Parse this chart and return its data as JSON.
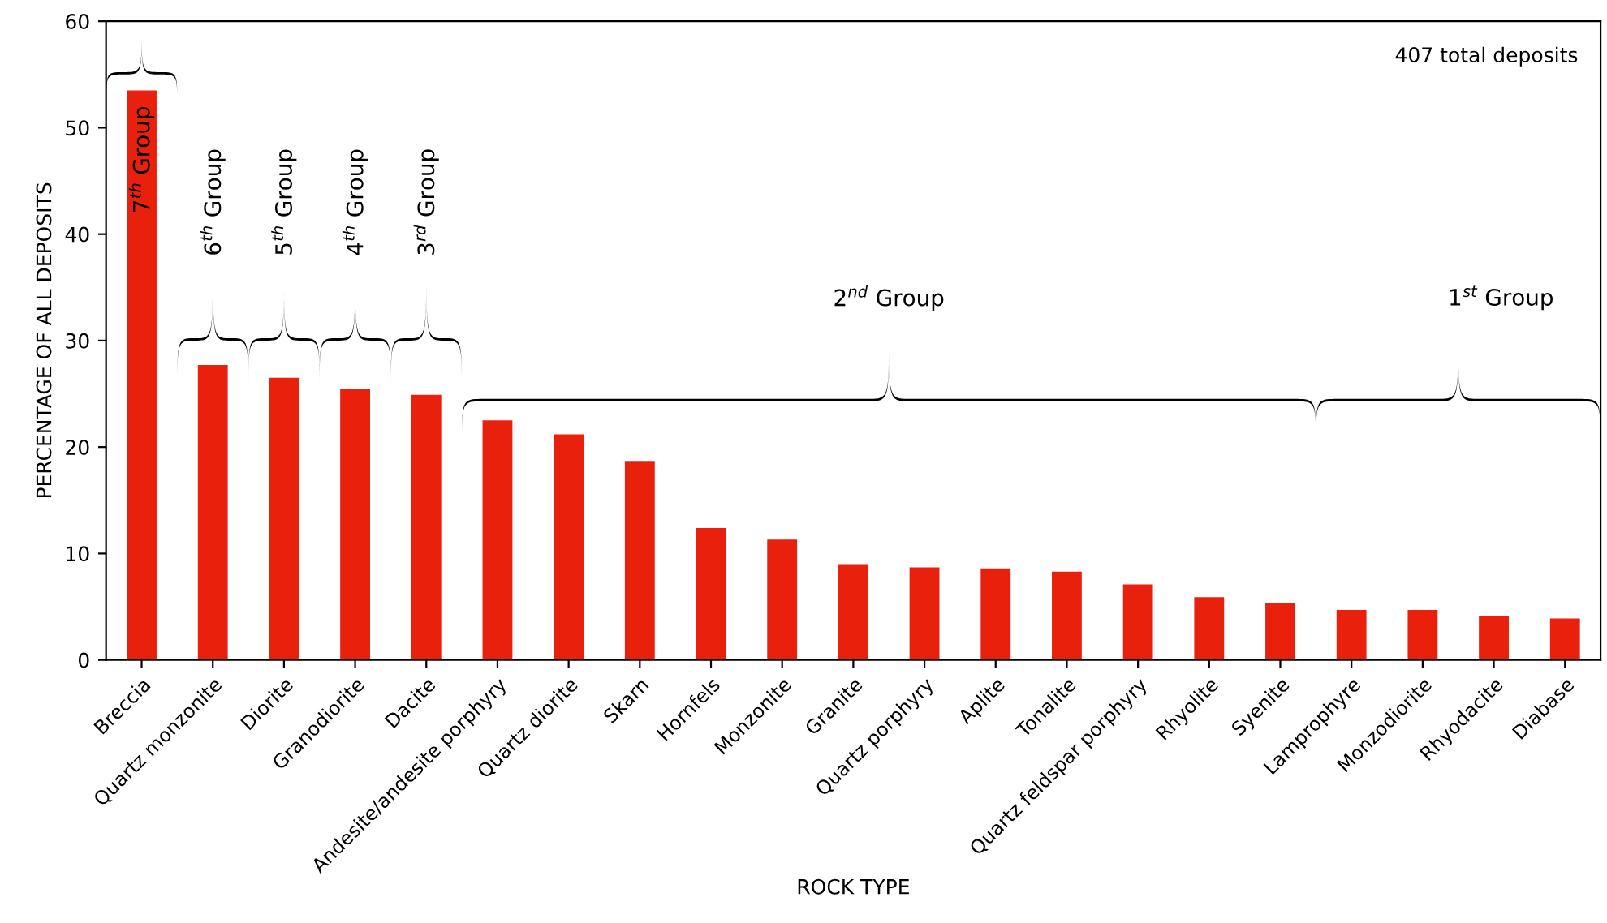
{
  "chart_data": {
    "type": "bar",
    "xlabel": "ROCK TYPE",
    "ylabel": "PERCENTAGE OF ALL DEPOSITS",
    "categories": [
      "Breccia",
      "Quartz monzonite",
      "Diorite",
      "Granodiorite",
      "Dacite",
      "Andesite/andesite porphyry",
      "Quartz diorite",
      "Skarn",
      "Hornfels",
      "Monzonite",
      "Granite",
      "Quartz porphyry",
      "Aplite",
      "Tonalite",
      "Quartz feldspar porphyry",
      "Rhyolite",
      "Syenite",
      "Lamprophyre",
      "Monzodiorite",
      "Rhyodacite",
      "Diabase"
    ],
    "values": [
      53.5,
      27.7,
      26.5,
      25.5,
      24.9,
      22.5,
      21.2,
      18.7,
      12.4,
      11.3,
      9.0,
      8.7,
      8.6,
      8.3,
      7.1,
      5.9,
      5.3,
      4.7,
      4.7,
      4.1,
      3.9
    ],
    "color": "#e8200c",
    "ylim": [
      0,
      60
    ],
    "yticks": [
      0,
      10,
      20,
      30,
      40,
      50,
      60
    ],
    "grid": false,
    "legend": false,
    "annotations": [
      "7$^{th}$ Group",
      "6$^{th}$ Group",
      "5$^{th}$ Group",
      "4$^{th}$ Group",
      "3$^{rd}$ Group",
      "2$^{nd}$ Group",
      "1$^{st}$ Group",
      "407 total deposits"
    ]
  }
}
